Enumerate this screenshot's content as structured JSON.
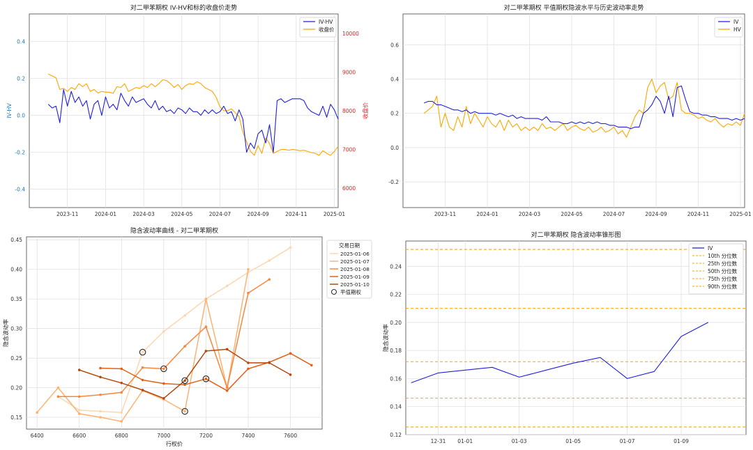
{
  "colors": {
    "iv": "#1f1fe0",
    "hv": "#ffa500",
    "close": "#ffa500",
    "left_axis": "#1f77b4",
    "right_axis": "#d62728",
    "grid": "#dddddd",
    "pct_line": "#ffa500",
    "atm_marker": "#333333",
    "date_colors": [
      "#fdd6ae",
      "#fdb272",
      "#f7873f",
      "#e2611a",
      "#b4490c"
    ]
  },
  "chart_data": [
    {
      "id": "iv_hv_close",
      "type": "line",
      "title": "对二甲苯期权 IV-HV和标的收盘价走势",
      "ylabel": "IV-HV",
      "y2label": "收盘价",
      "xlim": [
        0,
        16.2
      ],
      "ylim": [
        -0.5,
        0.55
      ],
      "y2lim": [
        5500,
        10500
      ],
      "xticks": [
        {
          "v": 2,
          "label": "2023-11"
        },
        {
          "v": 4,
          "label": "2024-01"
        },
        {
          "v": 6,
          "label": "2024-03"
        },
        {
          "v": 8,
          "label": "2024-05"
        },
        {
          "v": 10,
          "label": "2024-07"
        },
        {
          "v": 12,
          "label": "2024-09"
        },
        {
          "v": 14,
          "label": "2024-11"
        },
        {
          "v": 16,
          "label": "2025-01"
        }
      ],
      "yticks": [
        -0.4,
        -0.2,
        0.0,
        0.2,
        0.4
      ],
      "y2ticks": [
        6000,
        7000,
        8000,
        9000,
        10000
      ],
      "legend": [
        {
          "label": "IV-HV",
          "color": "#1f1fe0"
        },
        {
          "label": "收盘价",
          "color": "#ffa500"
        }
      ],
      "series": [
        {
          "name": "IV-HV",
          "axis": "left",
          "color": "#1f1fe0",
          "x": [
            1.0,
            1.2,
            1.4,
            1.6,
            1.8,
            2.0,
            2.2,
            2.4,
            2.6,
            2.8,
            3.0,
            3.2,
            3.4,
            3.6,
            3.8,
            4.0,
            4.2,
            4.4,
            4.6,
            4.8,
            5.0,
            5.2,
            5.4,
            5.6,
            5.8,
            6.0,
            6.2,
            6.4,
            6.6,
            6.8,
            7.0,
            7.2,
            7.4,
            7.6,
            7.8,
            8.0,
            8.2,
            8.4,
            8.6,
            8.8,
            9.0,
            9.2,
            9.4,
            9.6,
            9.8,
            10.0,
            10.2,
            10.4,
            10.6,
            10.8,
            11.0,
            11.2,
            11.4,
            11.6,
            11.8,
            12.0,
            12.2,
            12.4,
            12.6,
            12.8,
            13.0,
            13.2,
            13.4,
            13.6,
            13.8,
            14.0,
            14.2,
            14.4,
            14.6,
            14.8,
            15.0,
            15.2,
            15.4,
            15.6,
            15.8,
            16.0,
            16.2
          ],
          "y": [
            0.06,
            0.04,
            0.05,
            -0.04,
            0.14,
            0.05,
            0.13,
            0.07,
            0.1,
            0.05,
            0.08,
            -0.02,
            0.06,
            0.08,
            0.0,
            0.1,
            0.04,
            0.06,
            0.03,
            0.12,
            0.08,
            0.05,
            0.1,
            0.07,
            0.08,
            0.09,
            0.06,
            0.04,
            0.08,
            0.03,
            0.05,
            0.02,
            0.03,
            0.01,
            0.04,
            0.03,
            0.01,
            0.04,
            0.02,
            0.02,
            0.0,
            0.03,
            0.01,
            0.03,
            0.01,
            0.02,
            0.05,
            0.01,
            0.02,
            -0.03,
            0.03,
            -0.02,
            -0.2,
            -0.15,
            -0.18,
            -0.1,
            -0.08,
            -0.15,
            -0.05,
            -0.2,
            0.08,
            0.09,
            0.07,
            0.08,
            0.09,
            0.09,
            0.09,
            0.08,
            0.04,
            0.02,
            0.01,
            0.0,
            0.05,
            -0.01,
            0.06,
            0.03,
            -0.02
          ]
        },
        {
          "name": "收盘价",
          "axis": "right",
          "color": "#ffa500",
          "x": [
            1.0,
            1.2,
            1.4,
            1.6,
            1.8,
            2.0,
            2.2,
            2.4,
            2.6,
            2.8,
            3.0,
            3.2,
            3.4,
            3.6,
            3.8,
            4.0,
            4.2,
            4.4,
            4.6,
            4.8,
            5.0,
            5.2,
            5.4,
            5.6,
            5.8,
            6.0,
            6.2,
            6.4,
            6.6,
            6.8,
            7.0,
            7.2,
            7.4,
            7.6,
            7.8,
            8.0,
            8.2,
            8.4,
            8.6,
            8.8,
            9.0,
            9.2,
            9.4,
            9.6,
            9.8,
            10.0,
            10.2,
            10.4,
            10.6,
            10.8,
            11.0,
            11.2,
            11.4,
            11.6,
            11.8,
            12.0,
            12.2,
            12.4,
            12.6,
            12.8,
            13.0,
            13.2,
            13.4,
            13.6,
            13.8,
            14.0,
            14.2,
            14.4,
            14.6,
            14.8,
            15.0,
            15.2,
            15.4,
            15.6,
            15.8,
            16.0,
            16.2
          ],
          "y": [
            8950,
            8900,
            8850,
            8550,
            8580,
            8500,
            8600,
            8550,
            8700,
            8620,
            8700,
            8500,
            8550,
            8460,
            8500,
            8480,
            8480,
            8450,
            8620,
            8600,
            8700,
            8500,
            8550,
            8600,
            8580,
            8650,
            8600,
            8700,
            8620,
            8700,
            8800,
            8780,
            8700,
            8600,
            8680,
            8550,
            8650,
            8700,
            8680,
            8750,
            8700,
            8600,
            8550,
            8500,
            8350,
            8100,
            8000,
            8000,
            8050,
            7950,
            7850,
            7450,
            7200,
            6950,
            6850,
            7100,
            6900,
            7300,
            7150,
            6900,
            6950,
            7000,
            7000,
            6980,
            7000,
            6990,
            6970,
            6980,
            6950,
            6920,
            6900,
            6850,
            6970,
            6900,
            6850,
            6950,
            7080
          ]
        }
      ]
    },
    {
      "id": "iv_vs_hv",
      "type": "line",
      "title": "对二甲苯期权 平值期权隐波水平与历史波动率走势",
      "xlim": [
        0,
        16.2
      ],
      "ylim": [
        -0.35,
        0.78
      ],
      "xticks": [
        {
          "v": 2,
          "label": "2023-11"
        },
        {
          "v": 4,
          "label": "2024-01"
        },
        {
          "v": 6,
          "label": "2024-03"
        },
        {
          "v": 8,
          "label": "2024-05"
        },
        {
          "v": 10,
          "label": "2024-07"
        },
        {
          "v": 12,
          "label": "2024-09"
        },
        {
          "v": 14,
          "label": "2024-11"
        },
        {
          "v": 16,
          "label": "2025-01"
        }
      ],
      "yticks": [
        -0.2,
        0.0,
        0.2,
        0.4,
        0.6
      ],
      "legend": [
        {
          "label": "IV",
          "color": "#1f1fe0"
        },
        {
          "label": "HV",
          "color": "#ffa500"
        }
      ],
      "series": [
        {
          "name": "IV",
          "color": "#1f1fe0",
          "x": [
            1.0,
            1.2,
            1.4,
            1.6,
            1.8,
            2.0,
            2.2,
            2.4,
            2.6,
            2.8,
            3.0,
            3.2,
            3.4,
            3.6,
            3.8,
            4.0,
            4.2,
            4.4,
            4.6,
            4.8,
            5.0,
            5.2,
            5.4,
            5.6,
            5.8,
            6.0,
            6.2,
            6.4,
            6.6,
            6.8,
            7.0,
            7.2,
            7.4,
            7.6,
            7.8,
            8.0,
            8.2,
            8.4,
            8.6,
            8.8,
            9.0,
            9.2,
            9.4,
            9.6,
            9.8,
            10.0,
            10.2,
            10.4,
            10.6,
            10.8,
            11.0,
            11.2,
            11.4,
            11.6,
            11.8,
            12.0,
            12.2,
            12.4,
            12.6,
            12.8,
            13.0,
            13.2,
            13.4,
            13.6,
            13.8,
            14.0,
            14.2,
            14.4,
            14.6,
            14.8,
            15.0,
            15.2,
            15.4,
            15.6,
            15.8,
            16.0,
            16.2
          ],
          "y": [
            0.26,
            0.27,
            0.27,
            0.25,
            0.25,
            0.24,
            0.23,
            0.22,
            0.22,
            0.21,
            0.22,
            0.2,
            0.21,
            0.2,
            0.2,
            0.2,
            0.2,
            0.19,
            0.2,
            0.19,
            0.18,
            0.19,
            0.17,
            0.18,
            0.17,
            0.17,
            0.17,
            0.17,
            0.16,
            0.18,
            0.15,
            0.15,
            0.15,
            0.14,
            0.14,
            0.15,
            0.14,
            0.15,
            0.14,
            0.15,
            0.14,
            0.15,
            0.14,
            0.14,
            0.13,
            0.13,
            0.12,
            0.12,
            0.12,
            0.11,
            0.12,
            0.12,
            0.2,
            0.22,
            0.25,
            0.3,
            0.27,
            0.2,
            0.3,
            0.18,
            0.35,
            0.36,
            0.28,
            0.21,
            0.2,
            0.2,
            0.19,
            0.19,
            0.18,
            0.18,
            0.17,
            0.17,
            0.17,
            0.16,
            0.17,
            0.16,
            0.17
          ]
        },
        {
          "name": "HV",
          "color": "#ffa500",
          "x": [
            1.0,
            1.2,
            1.4,
            1.6,
            1.8,
            2.0,
            2.2,
            2.4,
            2.6,
            2.8,
            3.0,
            3.2,
            3.4,
            3.6,
            3.8,
            4.0,
            4.2,
            4.4,
            4.6,
            4.8,
            5.0,
            5.2,
            5.4,
            5.6,
            5.8,
            6.0,
            6.2,
            6.4,
            6.6,
            6.8,
            7.0,
            7.2,
            7.4,
            7.6,
            7.8,
            8.0,
            8.2,
            8.4,
            8.6,
            8.8,
            9.0,
            9.2,
            9.4,
            9.6,
            9.8,
            10.0,
            10.2,
            10.4,
            10.6,
            10.8,
            11.0,
            11.2,
            11.4,
            11.6,
            11.8,
            12.0,
            12.2,
            12.4,
            12.6,
            12.8,
            13.0,
            13.2,
            13.4,
            13.6,
            13.8,
            14.0,
            14.2,
            14.4,
            14.6,
            14.8,
            15.0,
            15.2,
            15.4,
            15.6,
            15.8,
            16.0,
            16.2
          ],
          "y": [
            0.2,
            0.22,
            0.24,
            0.3,
            0.12,
            0.2,
            0.12,
            0.1,
            0.18,
            0.12,
            0.24,
            0.14,
            0.2,
            0.16,
            0.12,
            0.18,
            0.14,
            0.12,
            0.16,
            0.1,
            0.16,
            0.12,
            0.14,
            0.1,
            0.12,
            0.1,
            0.12,
            0.1,
            0.14,
            0.11,
            0.12,
            0.1,
            0.12,
            0.14,
            0.1,
            0.12,
            0.13,
            0.11,
            0.1,
            0.12,
            0.09,
            0.1,
            0.12,
            0.09,
            0.1,
            0.12,
            0.08,
            0.1,
            0.06,
            0.12,
            0.18,
            0.22,
            0.2,
            0.35,
            0.4,
            0.32,
            0.36,
            0.38,
            0.28,
            0.3,
            0.38,
            0.22,
            0.2,
            0.2,
            0.19,
            0.17,
            0.18,
            0.16,
            0.15,
            0.17,
            0.14,
            0.12,
            0.14,
            0.13,
            0.15,
            0.13,
            0.2
          ]
        }
      ]
    },
    {
      "id": "smile",
      "type": "line",
      "title": "隐含波动率曲线 - 对二甲苯期权",
      "xlabel": "行权价",
      "ylabel": "隐含波动率",
      "xlim": [
        6350,
        7750
      ],
      "ylim": [
        0.13,
        0.455
      ],
      "xticks": [
        6400,
        6600,
        6800,
        7000,
        7200,
        7400,
        7600
      ],
      "yticks": [
        0.15,
        0.2,
        0.25,
        0.3,
        0.35,
        0.4,
        0.45
      ],
      "legend_title": "交易日期",
      "legend_atm": "平值期权",
      "series": [
        {
          "name": "2025-01-06",
          "x": [
            6500,
            6600,
            6700,
            6800,
            6900,
            7000,
            7100,
            7200,
            7300,
            7400,
            7500,
            7600
          ],
          "y": [
            0.185,
            0.162,
            0.16,
            0.158,
            0.26,
            0.295,
            0.322,
            0.35,
            0.372,
            0.395,
            0.415,
            0.437
          ],
          "atm": 6900
        },
        {
          "name": "2025-01-07",
          "x": [
            6400,
            6500,
            6600,
            6700,
            6800,
            6900,
            7000,
            7100,
            7200,
            7300,
            7400
          ],
          "y": [
            0.158,
            0.2,
            0.156,
            0.15,
            0.143,
            0.195,
            0.18,
            0.16,
            0.35,
            0.2,
            0.4
          ],
          "atm": 7100
        },
        {
          "name": "2025-01-08",
          "x": [
            6500,
            6600,
            6700,
            6800,
            6900,
            7000,
            7100,
            7200,
            7300,
            7400,
            7500
          ],
          "y": [
            0.185,
            0.185,
            0.188,
            0.192,
            0.234,
            0.232,
            0.27,
            0.303,
            0.2,
            0.36,
            0.383
          ],
          "atm": 7000
        },
        {
          "name": "2025-01-09",
          "x": [
            6700,
            6800,
            6900,
            7000,
            7100,
            7200,
            7300,
            7400,
            7500,
            7600,
            7700
          ],
          "y": [
            0.233,
            0.232,
            0.213,
            0.207,
            0.205,
            0.215,
            0.195,
            0.232,
            0.243,
            0.258,
            0.238
          ],
          "atm": 7200
        },
        {
          "name": "2025-01-10",
          "x": [
            6600,
            6700,
            6800,
            6900,
            7000,
            7100,
            7200,
            7300,
            7400,
            7500,
            7600
          ],
          "y": [
            0.23,
            0.218,
            0.208,
            0.196,
            0.182,
            0.212,
            0.262,
            0.265,
            0.242,
            0.242,
            0.222
          ],
          "atm": 7100
        }
      ]
    },
    {
      "id": "cone",
      "type": "line",
      "title": "对二甲苯期权 隐含波动率锥形图",
      "ylabel": "隐含波动率",
      "xlim": [
        -0.6,
        5.7
      ],
      "ylim": [
        0.12,
        0.258
      ],
      "xticks": [
        {
          "v": 0,
          "label": "12-31"
        },
        {
          "v": 0.5,
          "label": "01-01"
        },
        {
          "v": 1.5,
          "label": "01-03"
        },
        {
          "v": 2.5,
          "label": "01-05"
        },
        {
          "v": 3.5,
          "label": "01-07"
        },
        {
          "v": 4.5,
          "label": "01-09"
        }
      ],
      "yticks": [
        0.12,
        0.14,
        0.16,
        0.18,
        0.2,
        0.22,
        0.24
      ],
      "series": [
        {
          "name": "IV",
          "x": [
            -0.5,
            0,
            0.5,
            1,
            1.5,
            2,
            2.5,
            3,
            3.5,
            4,
            4.5,
            5
          ],
          "y": [
            0.157,
            0.164,
            0.166,
            0.168,
            0.161,
            0.166,
            0.171,
            0.175,
            0.16,
            0.165,
            0.19,
            0.2
          ]
        }
      ],
      "percentiles": [
        {
          "label": "10th 分位数",
          "value": 0.1255
        },
        {
          "label": "25th 分位数",
          "value": 0.146
        },
        {
          "label": "50th 分位数",
          "value": 0.172
        },
        {
          "label": "75th 分位数",
          "value": 0.21
        },
        {
          "label": "90th 分位数",
          "value": 0.252
        }
      ]
    }
  ]
}
